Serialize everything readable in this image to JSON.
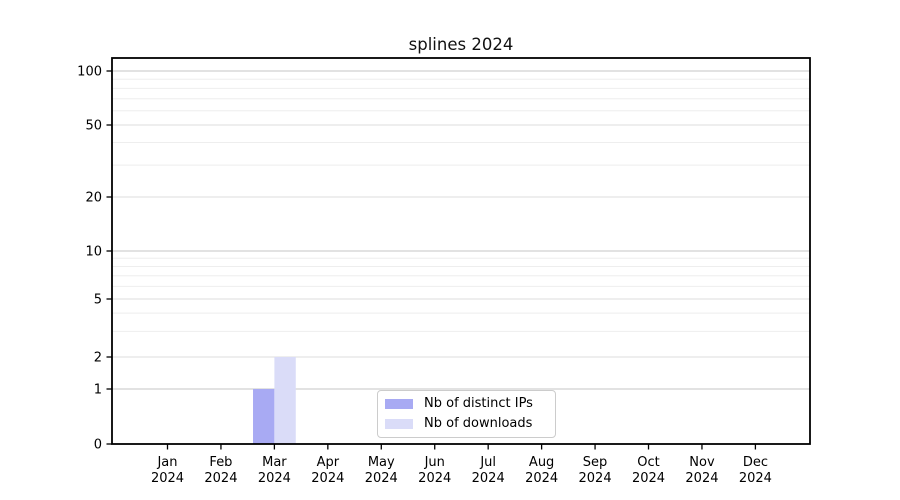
{
  "chart_data": {
    "type": "bar",
    "title": "splines 2024",
    "year": "2024",
    "categories": [
      "Jan 2024",
      "Feb 2024",
      "Mar 2024",
      "Apr 2024",
      "May 2024",
      "Jun 2024",
      "Jul 2024",
      "Aug 2024",
      "Sep 2024",
      "Oct 2024",
      "Nov 2024",
      "Dec 2024"
    ],
    "month_labels": [
      "Jan",
      "Feb",
      "Mar",
      "Apr",
      "May",
      "Jun",
      "Jul",
      "Aug",
      "Sep",
      "Oct",
      "Nov",
      "Dec"
    ],
    "series": [
      {
        "name": "Nb of distinct IPs",
        "color": "#a8aaf3",
        "values": [
          0,
          0,
          1,
          0,
          0,
          0,
          0,
          0,
          0,
          0,
          0,
          0
        ]
      },
      {
        "name": "Nb of downloads",
        "color": "#dadcf8",
        "values": [
          0,
          0,
          2,
          0,
          0,
          0,
          0,
          0,
          0,
          0,
          0,
          0
        ]
      }
    ],
    "yscale": "symlog",
    "y_ticks": [
      0,
      1,
      2,
      5,
      10,
      20,
      50,
      100
    ],
    "ylim": [
      0,
      120
    ],
    "xlabel": "",
    "ylabel": "",
    "grid": "horizontal",
    "legend_position": "lower center",
    "colors": {
      "grid_major": "#c6c6c6",
      "grid_mid": "#dcdcdc",
      "grid_minor": "#eeeeee",
      "frame": "#000000",
      "legend_border": "#cccccc"
    }
  }
}
